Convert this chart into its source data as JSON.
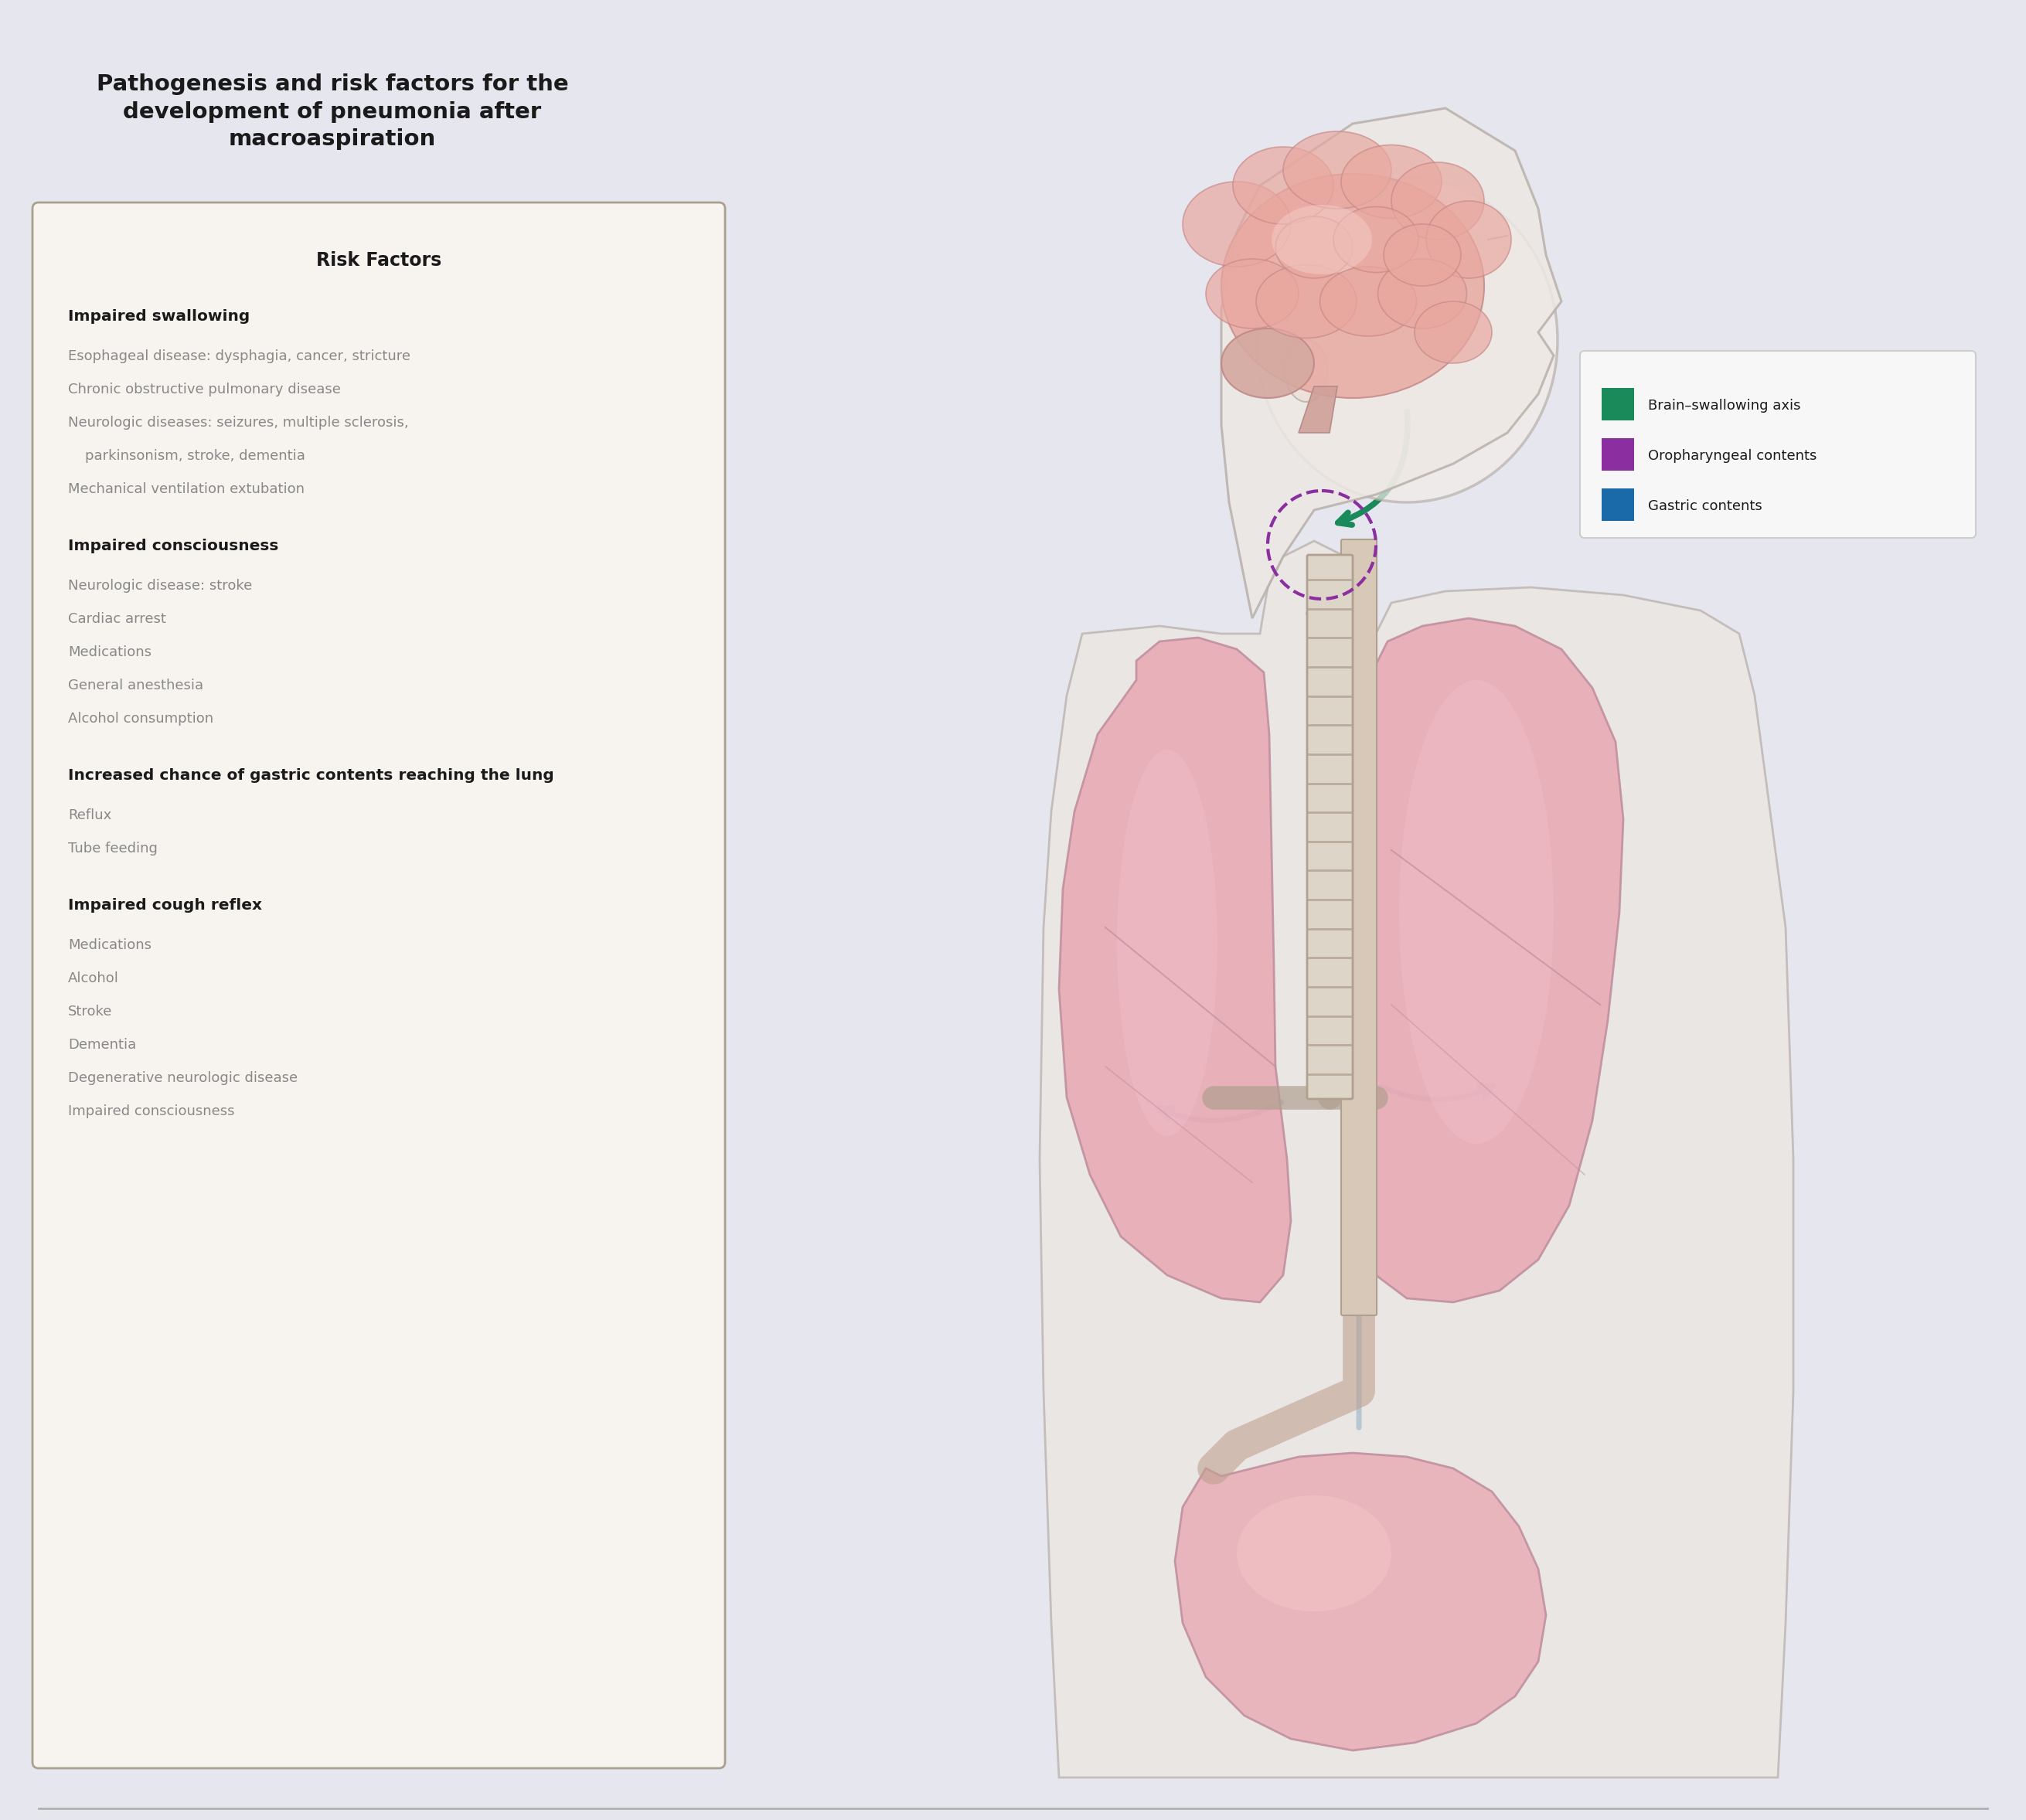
{
  "title": "Pathogenesis and risk factors for the\ndevelopment of pneumonia after\nmacroaspiration",
  "title_fontsize": 21,
  "title_color": "#1a1a1a",
  "bg_color": "#e6e6ee",
  "box_bg_color": "#f7f4ef",
  "box_border_color": "#aaa090",
  "risk_header": "Risk Factors",
  "risk_header_fontsize": 17,
  "risk_sections": [
    {
      "heading": "Impaired swallowing",
      "items": [
        "Esophageal disease: dysphagia, cancer, stricture",
        "Chronic obstructive pulmonary disease",
        "Neurologic diseases: seizures, multiple sclerosis,",
        "  parkinsonism, stroke, dementia",
        "Mechanical ventilation extubation"
      ]
    },
    {
      "heading": "Impaired consciousness",
      "items": [
        "Neurologic disease: stroke",
        "Cardiac arrest",
        "Medications",
        "General anesthesia",
        "Alcohol consumption"
      ]
    },
    {
      "heading": "Increased chance of gastric contents reaching the lung",
      "items": [
        "Reflux",
        "Tube feeding"
      ]
    },
    {
      "heading": "Impaired cough reflex",
      "items": [
        "Medications",
        "Alcohol",
        "Stroke",
        "Dementia",
        "Degenerative neurologic disease",
        "Impaired consciousness"
      ]
    }
  ],
  "legend_items": [
    {
      "label": "Brain–swallowing axis",
      "color": "#1a8a5a"
    },
    {
      "label": "Oropharyngeal contents",
      "color": "#8b2fa0"
    },
    {
      "label": "Gastric contents",
      "color": "#1a6aaa"
    }
  ],
  "legend_box_color": "#f8f8f8",
  "legend_border_color": "#cccccc",
  "skin_outline": "#b8b0aa",
  "skin_fill": "#e8ddd5",
  "brain_fill": "#e8b0a8",
  "brain_edge": "#c89090",
  "lung_fill": "#e8aab5",
  "lung_edge": "#c090a0",
  "stomach_fill": "#e8b0b8",
  "stomach_edge": "#c090a0",
  "trachea_fill": "#ddd5c8",
  "trachea_edge": "#b0a090",
  "green_arrow": "#1a8a5a",
  "purple_arrow": "#8b2fa0",
  "blue_arrow": "#1a6aaa"
}
